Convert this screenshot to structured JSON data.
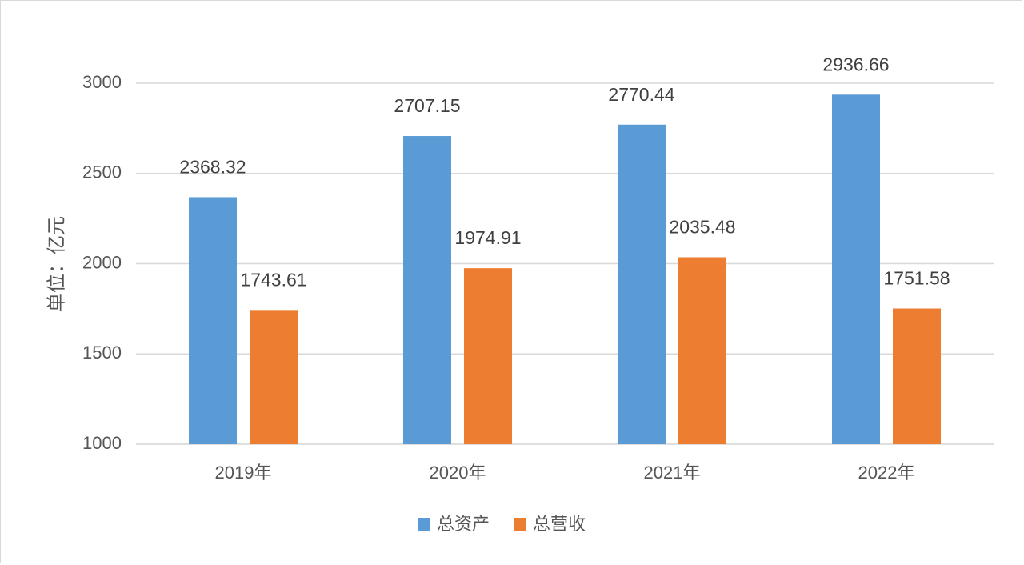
{
  "chart_data": {
    "type": "bar",
    "categories": [
      "2019年",
      "2020年",
      "2021年",
      "2022年"
    ],
    "series": [
      {
        "name": "总资产",
        "values": [
          2368.32,
          2707.15,
          2770.44,
          2936.66
        ],
        "color": "#5b9bd5"
      },
      {
        "name": "总营收",
        "values": [
          1743.61,
          1974.91,
          2035.48,
          1751.58
        ],
        "color": "#ed7d31"
      }
    ],
    "ylabel": "单位：亿元",
    "ylim": [
      1000,
      3000
    ],
    "yticks": [
      1000,
      1500,
      2000,
      2500,
      3000
    ],
    "grid": true,
    "legend": "bottom"
  }
}
